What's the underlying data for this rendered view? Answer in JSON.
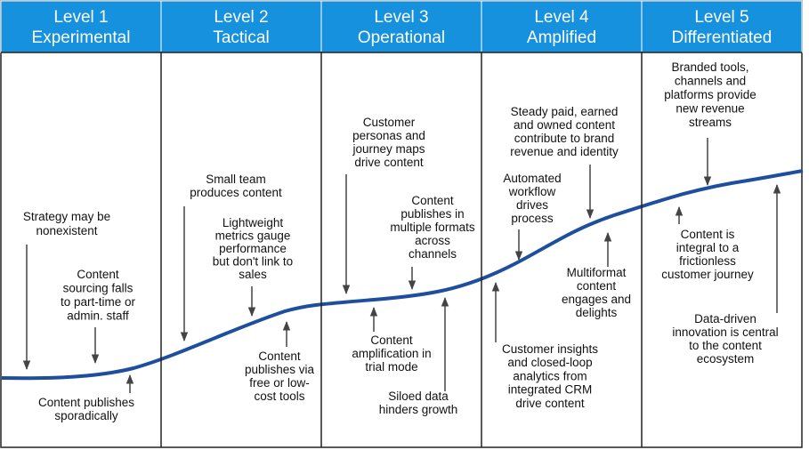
{
  "levels": [
    {
      "level": "Level 1",
      "name": "Experimental",
      "notes": [
        {
          "lines": [
            "Strategy may be",
            "nonexistent"
          ]
        },
        {
          "lines": [
            "Content",
            "sourcing falls",
            "to part-time or",
            "admin. staff"
          ]
        },
        {
          "lines": [
            "Content publishes",
            "sporadically"
          ]
        }
      ]
    },
    {
      "level": "Level 2",
      "name": "Tactical",
      "notes": [
        {
          "lines": [
            "Small team",
            "produces content"
          ]
        },
        {
          "lines": [
            "Lightweight",
            "metrics gauge",
            "performance",
            "but don't link to",
            "sales"
          ]
        },
        {
          "lines": [
            "Content",
            "publishes via",
            "free or low-",
            "cost tools"
          ]
        }
      ]
    },
    {
      "level": "Level 3",
      "name": "Operational",
      "notes": [
        {
          "lines": [
            "Customer",
            "personas and",
            "journey maps",
            "drive content"
          ]
        },
        {
          "lines": [
            "Content",
            "publishes in",
            "multiple formats",
            "across",
            "channels"
          ]
        },
        {
          "lines": [
            "Content",
            "amplification in",
            "trial mode"
          ]
        },
        {
          "lines": [
            "Siloed data",
            "hinders growth"
          ]
        }
      ]
    },
    {
      "level": "Level 4",
      "name": "Amplified",
      "notes": [
        {
          "lines": [
            "Steady paid, earned",
            "and owned content",
            "contribute to brand",
            "revenue and identity"
          ]
        },
        {
          "lines": [
            "Automated",
            "workflow",
            "drives",
            "process"
          ]
        },
        {
          "lines": [
            "Multiformat",
            "content",
            "engages and",
            "delights"
          ]
        },
        {
          "lines": [
            "Customer insights",
            "and closed-loop",
            "analytics from",
            "integrated CRM",
            "drive content"
          ]
        }
      ]
    },
    {
      "level": "Level 5",
      "name": "Differentiated",
      "notes": [
        {
          "lines": [
            "Branded tools,",
            "channels and",
            "platforms provide",
            "new revenue",
            "streams"
          ]
        },
        {
          "lines": [
            "Content is",
            "integral to a",
            "frictionless",
            "customer journey"
          ]
        },
        {
          "lines": [
            "Data-driven",
            "innovation is central",
            "to the content",
            "ecosystem"
          ]
        }
      ]
    }
  ]
}
